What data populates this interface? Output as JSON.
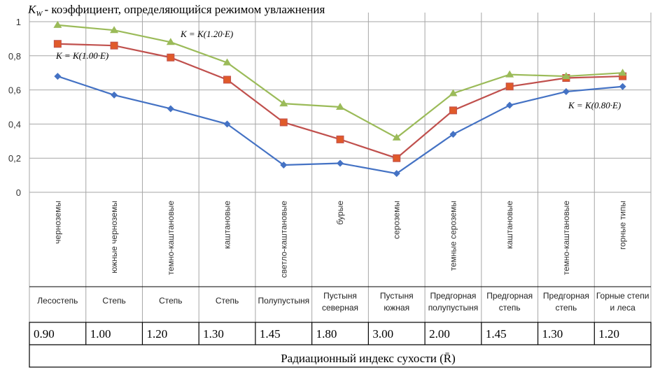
{
  "chart_data": {
    "type": "line",
    "title_symbol": "K",
    "title_subscript": "W",
    "title": "- коэффициент, определяющийся режимом увлажнения",
    "yticks": [
      "0",
      "0,2",
      "0,4",
      "0,6",
      "0,8",
      "1"
    ],
    "ylim": [
      0,
      1
    ],
    "grid": true,
    "categories": [
      "черноземы",
      "южные черноземы",
      "темно-каштановые",
      "каштановые",
      "светло-каштановые",
      "бурые",
      "сероземы",
      "темные сероземы",
      "каштановые",
      "темно-каштановые",
      "горные типы"
    ],
    "zones": [
      [
        "Лесостепь"
      ],
      [
        "Степь"
      ],
      [
        "Степь"
      ],
      [
        "Степь"
      ],
      [
        "Полупустыня"
      ],
      [
        "Пустыня",
        "северная"
      ],
      [
        "Пустыня",
        "южная"
      ],
      [
        "Предгорная",
        "полупустыня"
      ],
      [
        "Предгорная",
        "степь"
      ],
      [
        "Предгорная",
        "степь"
      ],
      [
        "Горные степи",
        "и леса"
      ]
    ],
    "dryness_index": [
      "0.90",
      "1.00",
      "1.20",
      "1.30",
      "1.45",
      "1.80",
      "3.00",
      "2.00",
      "1.45",
      "1.30",
      "1.20"
    ],
    "xlabel": "Радиационный индекс сухости (R̄)",
    "series": [
      {
        "name": "K = K(0.80·E)",
        "color": "#4472c4",
        "marker": "diamond",
        "values": [
          0.68,
          0.57,
          0.49,
          0.4,
          0.16,
          0.17,
          0.11,
          0.34,
          0.51,
          0.59,
          0.62
        ]
      },
      {
        "name": "K = K(1.00·E)",
        "color": "#c0504d",
        "marker": "square",
        "values": [
          0.87,
          0.86,
          0.79,
          0.66,
          0.41,
          0.31,
          0.2,
          0.48,
          0.62,
          0.67,
          0.68
        ]
      },
      {
        "name": "K = K(1.20·E)",
        "color": "#9bbb59",
        "marker": "triangle",
        "values": [
          0.98,
          0.95,
          0.88,
          0.76,
          0.52,
          0.5,
          0.32,
          0.58,
          0.69,
          0.68,
          0.7
        ]
      }
    ]
  }
}
